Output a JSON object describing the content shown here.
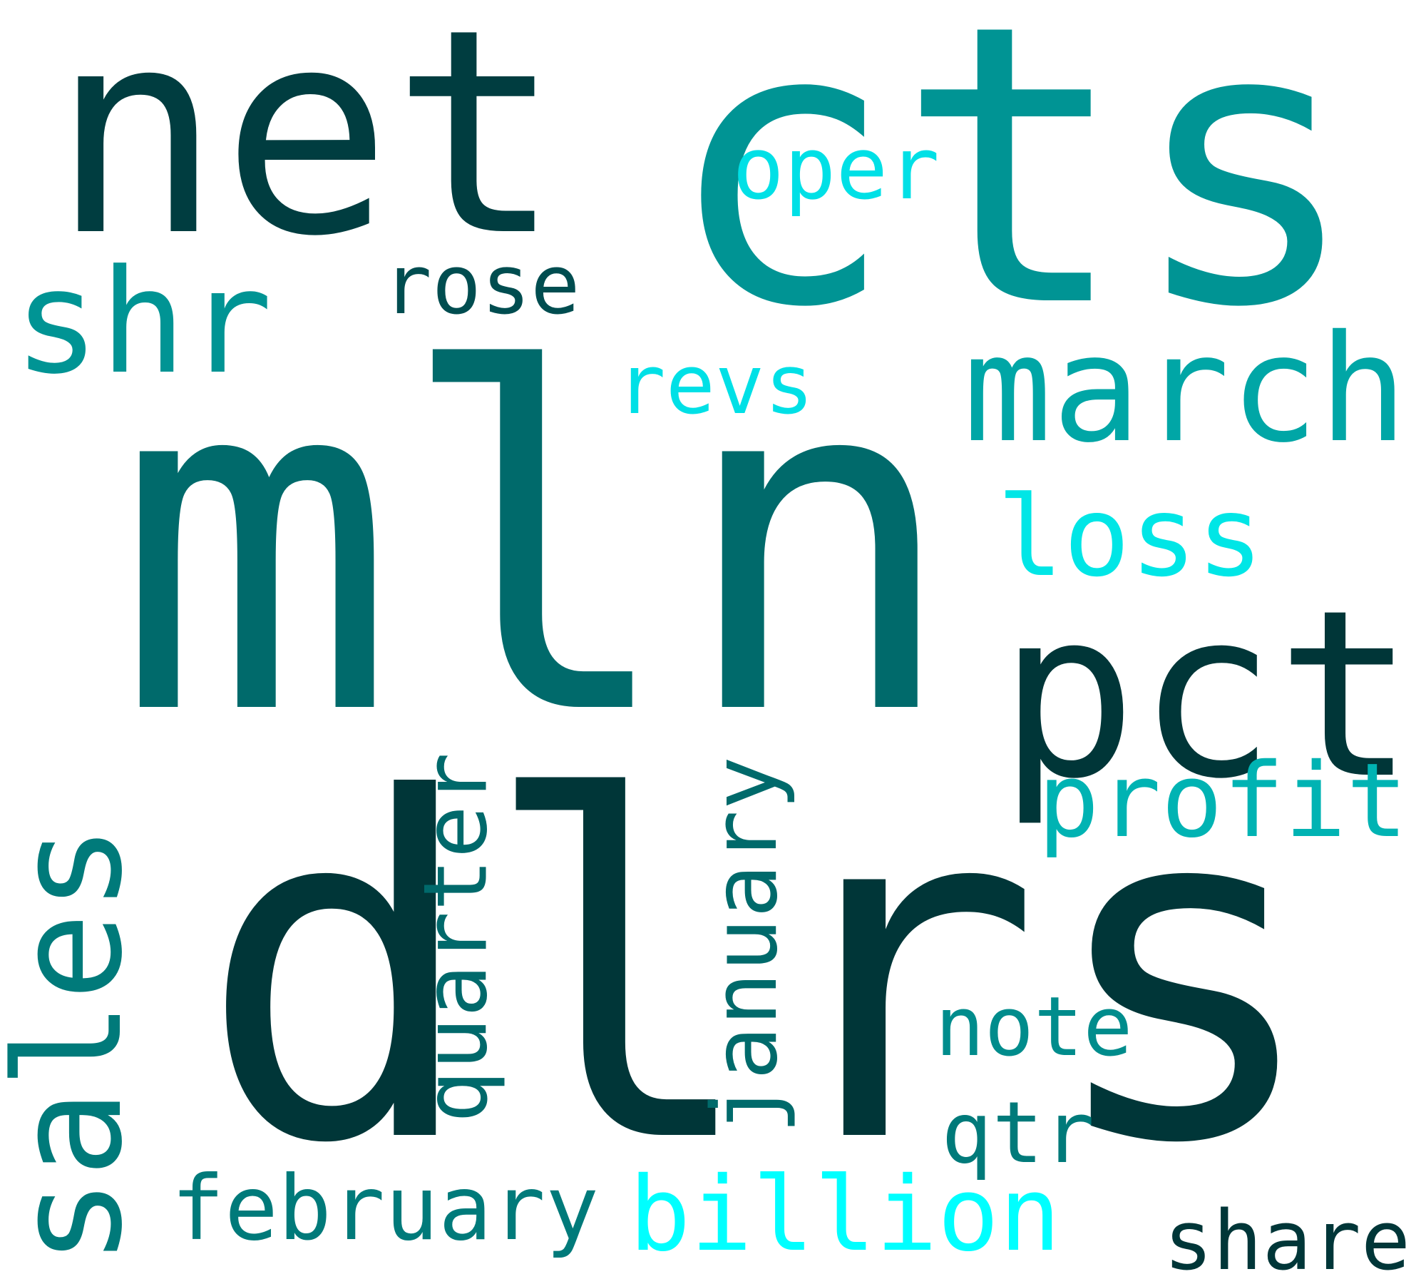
{
  "colors": {
    "background": "#ffffff",
    "dark": "#003638",
    "teal_dark": "#006a6b",
    "teal": "#009494",
    "teal_mid": "#00a6a6",
    "teal_light": "#00c0c0",
    "cyan": "#00e6e6",
    "cyan_bright": "#00ffff",
    "teal_medium": "#007a7a"
  },
  "words": [
    {
      "id": "mln",
      "text": "mln",
      "color": "#006a6b"
    },
    {
      "id": "dlrs",
      "text": "dlrs",
      "color": "#003638"
    },
    {
      "id": "cts",
      "text": "cts",
      "color": "#009494"
    },
    {
      "id": "net",
      "text": "net",
      "color": "#003d40"
    },
    {
      "id": "pct",
      "text": "pct",
      "color": "#003638"
    },
    {
      "id": "march",
      "text": "march",
      "color": "#00a6a6"
    },
    {
      "id": "sales",
      "text": "sales",
      "color": "#007a7a"
    },
    {
      "id": "shr",
      "text": "shr",
      "color": "#009494"
    },
    {
      "id": "loss",
      "text": "loss",
      "color": "#00e6e6"
    },
    {
      "id": "profit",
      "text": "profit",
      "color": "#00b3b3"
    },
    {
      "id": "billion",
      "text": "billion",
      "color": "#00ffff"
    },
    {
      "id": "share",
      "text": "share",
      "color": "#003638"
    },
    {
      "id": "rose",
      "text": "rose",
      "color": "#004d50"
    },
    {
      "id": "oper",
      "text": "oper",
      "color": "#00e0e6"
    },
    {
      "id": "revs",
      "text": "revs",
      "color": "#00e0e6"
    },
    {
      "id": "quarter",
      "text": "quarter",
      "color": "#00696b"
    },
    {
      "id": "january",
      "text": "january",
      "color": "#006a6b"
    },
    {
      "id": "note",
      "text": "note",
      "color": "#008c8c"
    },
    {
      "id": "qtr",
      "text": "qtr",
      "color": "#007a7a"
    },
    {
      "id": "february",
      "text": "february",
      "color": "#007a7a"
    }
  ]
}
